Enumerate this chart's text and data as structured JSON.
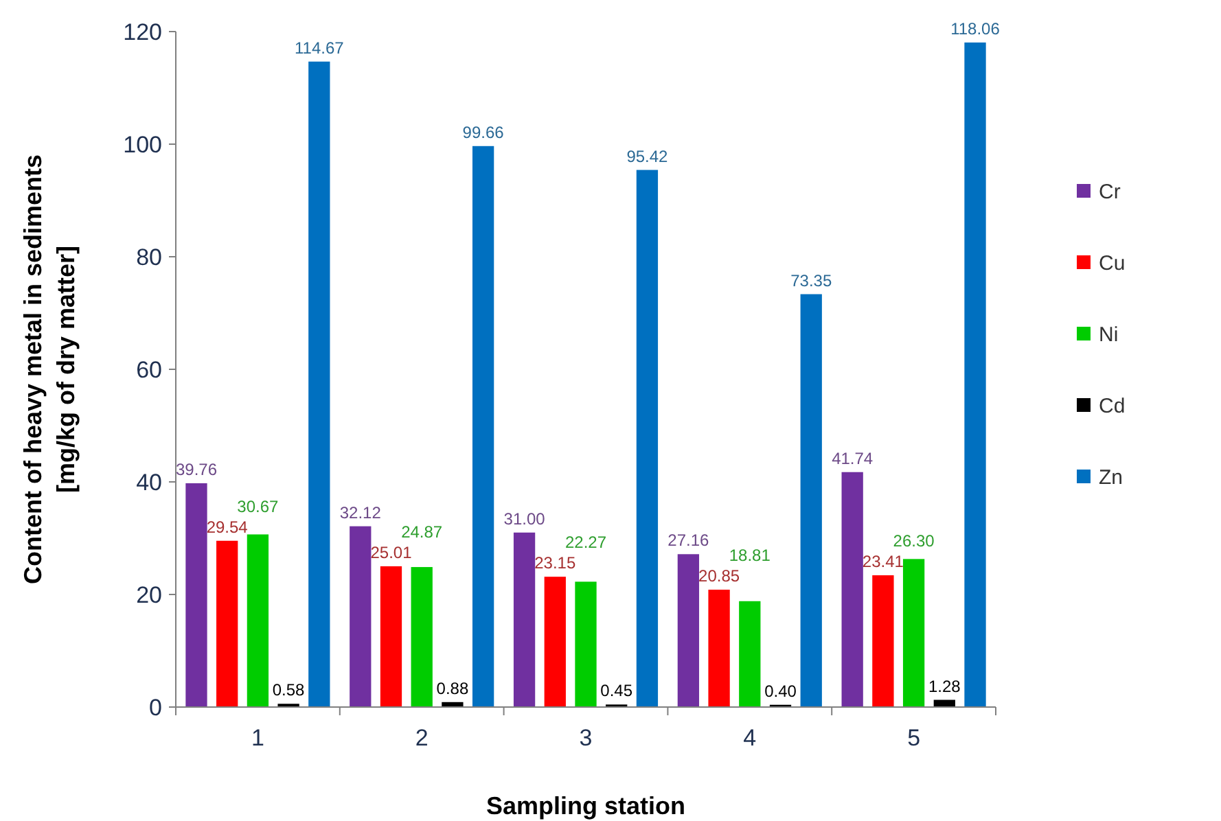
{
  "chart_data": {
    "type": "bar",
    "xlabel": "Sampling station",
    "ylabel": "Content of heavy metal in sediments\n[mg/kg of dry matter]",
    "categories": [
      "1",
      "2",
      "3",
      "4",
      "5"
    ],
    "series": [
      {
        "name": "Cr",
        "color": "#7030a0",
        "values": [
          39.76,
          32.12,
          31.0,
          27.16,
          41.74
        ],
        "value_labels": [
          "39.76",
          "32.12",
          "31.00",
          "27.16",
          "41.74"
        ]
      },
      {
        "name": "Cu",
        "color": "#ff0000",
        "values": [
          29.54,
          25.01,
          23.15,
          20.85,
          23.41
        ],
        "value_labels": [
          "29.54",
          "25.01",
          "23.15",
          "20.85",
          "23.41"
        ]
      },
      {
        "name": "Ni",
        "color": "#00cc00",
        "values": [
          30.67,
          24.87,
          22.27,
          18.81,
          26.3
        ],
        "value_labels": [
          "30.67",
          "24.87",
          "22.27",
          "18.81",
          "26.30"
        ]
      },
      {
        "name": "Cd",
        "color": "#000000",
        "values": [
          0.58,
          0.88,
          0.45,
          0.4,
          1.28
        ],
        "value_labels": [
          "0.58",
          "0.88",
          "0.45",
          "0.40",
          "1.28"
        ]
      },
      {
        "name": "Zn",
        "color": "#0070c0",
        "values": [
          114.67,
          99.66,
          95.42,
          73.35,
          118.06
        ],
        "value_labels": [
          "114.67",
          "99.66",
          "95.42",
          "73.35",
          "118.06"
        ]
      }
    ],
    "ylim": [
      0,
      120
    ],
    "yticks": [
      0,
      20,
      40,
      60,
      80,
      100,
      120
    ],
    "grid": false,
    "legend": "right"
  }
}
